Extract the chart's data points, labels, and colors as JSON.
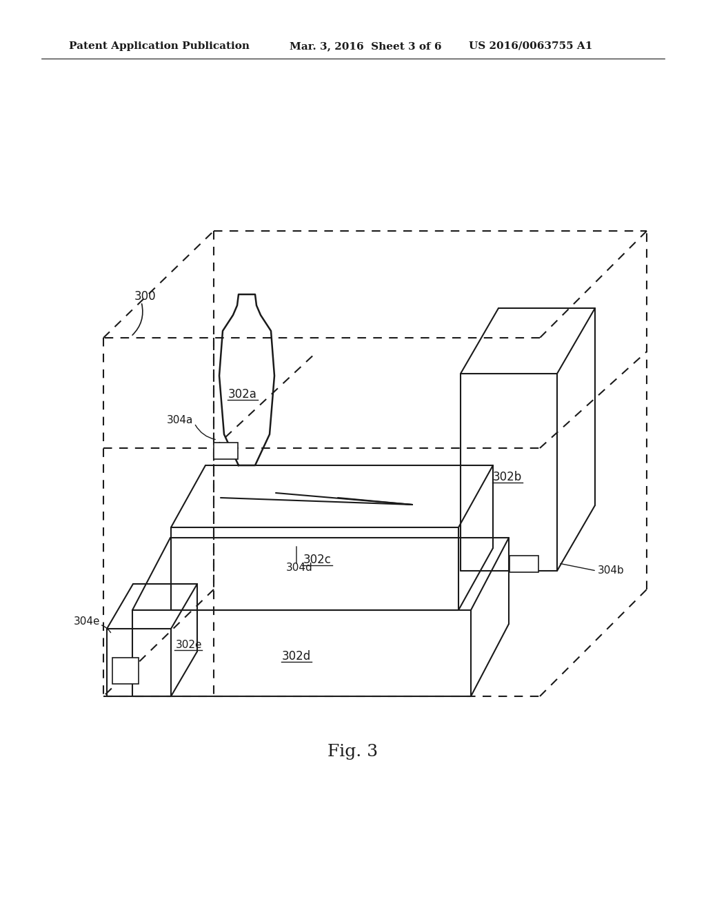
{
  "bg_color": "#ffffff",
  "line_color": "#1a1a1a",
  "header_left": "Patent Application Publication",
  "header_mid": "Mar. 3, 2016  Sheet 3 of 6",
  "header_right": "US 2016/0063755 A1",
  "fig_label": "Fig. 3",
  "label_300": "300",
  "label_302a": "302a",
  "label_302b": "302b",
  "label_302c": "302c",
  "label_302d": "302d",
  "label_302e": "302e",
  "label_304a": "304a",
  "label_304b": "304b",
  "label_304d": "304d",
  "label_304e": "304e"
}
